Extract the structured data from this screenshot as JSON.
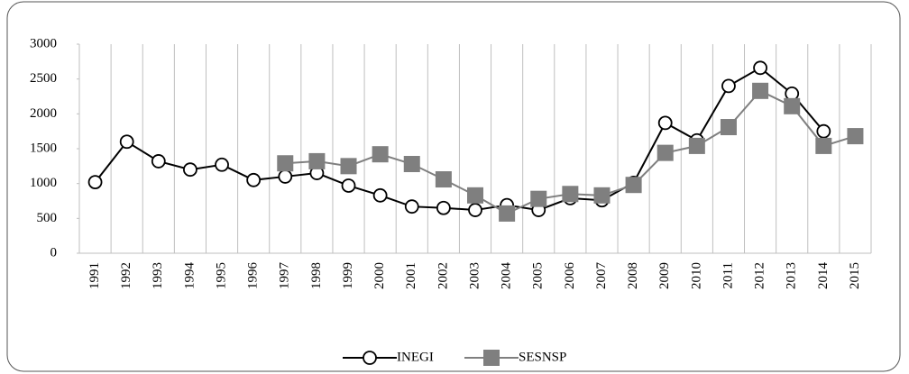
{
  "chart_data": {
    "type": "line",
    "categories": [
      "1991",
      "1992",
      "1993",
      "1994",
      "1995",
      "1996",
      "1997",
      "1998",
      "1999",
      "2000",
      "2001",
      "2002",
      "2003",
      "2004",
      "2005",
      "2006",
      "2007",
      "2008",
      "2009",
      "2010",
      "2011",
      "2012",
      "2013",
      "2014",
      "2015"
    ],
    "series": [
      {
        "name": "INEGI",
        "color": "#000000",
        "marker": "circle",
        "values": [
          1020,
          1600,
          1320,
          1200,
          1270,
          1050,
          1100,
          1150,
          970,
          830,
          670,
          650,
          620,
          690,
          620,
          790,
          760,
          1010,
          1870,
          1620,
          2400,
          2660,
          2290,
          1750,
          null
        ]
      },
      {
        "name": "SESNSP",
        "color": "#7f7f7f",
        "marker": "square",
        "values": [
          null,
          null,
          null,
          null,
          null,
          null,
          1290,
          1320,
          1250,
          1420,
          1280,
          1060,
          830,
          570,
          780,
          850,
          830,
          980,
          1440,
          1540,
          1810,
          2330,
          2110,
          1540,
          1680
        ]
      }
    ],
    "ylim": [
      0,
      3000
    ],
    "yticks": [
      0,
      500,
      1000,
      1500,
      2000,
      2500,
      3000
    ],
    "grid": true,
    "legend": "bottom"
  }
}
